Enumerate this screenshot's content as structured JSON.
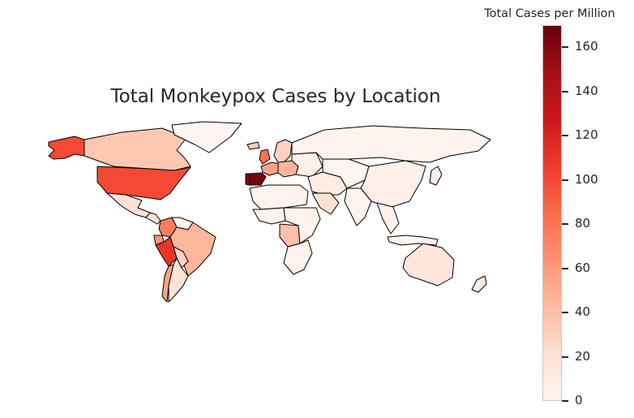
{
  "title": "Total Monkeypox Cases by Location",
  "colorbar": {
    "title": "Total Cases per Million",
    "min": 0,
    "max": 170,
    "ticks": [
      {
        "label": "0",
        "value": 0
      },
      {
        "label": "20",
        "value": 20
      },
      {
        "label": "40",
        "value": 40
      },
      {
        "label": "60",
        "value": 60
      },
      {
        "label": "80",
        "value": 80
      },
      {
        "label": "100",
        "value": 100
      },
      {
        "label": "120",
        "value": 120
      },
      {
        "label": "140",
        "value": 140
      },
      {
        "label": "160",
        "value": 160
      }
    ],
    "colormap": "Reds"
  },
  "regions": [
    {
      "name": "alaska",
      "value": 100
    },
    {
      "name": "canada",
      "value": 35
    },
    {
      "name": "greenland",
      "value": 0
    },
    {
      "name": "usa",
      "value": 100
    },
    {
      "name": "mexico",
      "value": 20
    },
    {
      "name": "central-america",
      "value": 15
    },
    {
      "name": "colombia",
      "value": 75
    },
    {
      "name": "venezuela",
      "value": 5
    },
    {
      "name": "peru",
      "value": 110
    },
    {
      "name": "ecuador",
      "value": 60
    },
    {
      "name": "brazil",
      "value": 45
    },
    {
      "name": "bolivia",
      "value": 30
    },
    {
      "name": "chile",
      "value": 55
    },
    {
      "name": "argentina",
      "value": 18
    },
    {
      "name": "iceland",
      "value": 30
    },
    {
      "name": "uk",
      "value": 80
    },
    {
      "name": "scandinavia",
      "value": 30
    },
    {
      "name": "france-benelux",
      "value": 55
    },
    {
      "name": "spain",
      "value": 165
    },
    {
      "name": "portugal",
      "value": 160
    },
    {
      "name": "central-europe",
      "value": 45
    },
    {
      "name": "eastern-europe",
      "value": 5
    },
    {
      "name": "russia",
      "value": 2
    },
    {
      "name": "north-africa",
      "value": 2
    },
    {
      "name": "west-africa",
      "value": 3
    },
    {
      "name": "central-africa",
      "value": 40
    },
    {
      "name": "east-africa",
      "value": 2
    },
    {
      "name": "southern-africa",
      "value": 3
    },
    {
      "name": "middle-east",
      "value": 8
    },
    {
      "name": "saudi-arabia",
      "value": 20
    },
    {
      "name": "central-asia",
      "value": 0
    },
    {
      "name": "china",
      "value": 4
    },
    {
      "name": "india",
      "value": 2
    },
    {
      "name": "southeast-asia",
      "value": 5
    },
    {
      "name": "indonesia",
      "value": 2
    },
    {
      "name": "japan",
      "value": 5
    },
    {
      "name": "australia",
      "value": 15
    },
    {
      "name": "new-zealand",
      "value": 10
    }
  ]
}
